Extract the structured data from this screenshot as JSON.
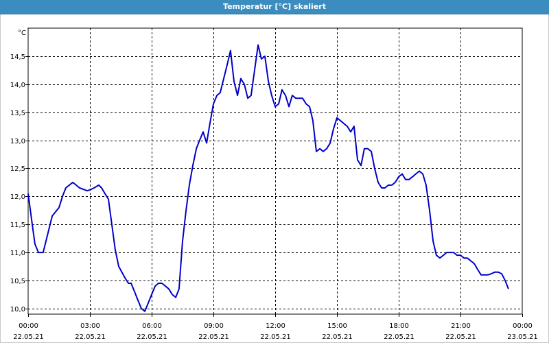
{
  "window": {
    "title": "Temperatur [°C] skaliert"
  },
  "colors": {
    "titlebar": "#3c8dbf",
    "line": "#0000c8",
    "grid": "#000000"
  },
  "chart_data": {
    "type": "line",
    "title": "Temperatur [°C] skaliert",
    "ylabel": "°C",
    "xlabel": "",
    "ylim": [
      9.9,
      15.0
    ],
    "xlim": [
      0,
      24
    ],
    "grid": true,
    "yticks": [
      10.0,
      10.5,
      11.0,
      11.5,
      12.0,
      12.5,
      13.0,
      13.5,
      14.0,
      14.5
    ],
    "ytick_labels": [
      "10,0",
      "10,5",
      "11,0",
      "11,5",
      "12,0",
      "12,5",
      "13,0",
      "13,5",
      "14,0",
      "14,5"
    ],
    "xticks": [
      0,
      3,
      6,
      9,
      12,
      15,
      18,
      21,
      24
    ],
    "xtick_labels": [
      [
        "00:00",
        "22.05.21"
      ],
      [
        "03:00",
        "22.05.21"
      ],
      [
        "06:00",
        "22.05.21"
      ],
      [
        "09:00",
        "22.05.21"
      ],
      [
        "12:00",
        "22.05.21"
      ],
      [
        "15:00",
        "22.05.21"
      ],
      [
        "18:00",
        "22.05.21"
      ],
      [
        "21:00",
        "22.05.21"
      ],
      [
        "00:00",
        "23.05.21"
      ]
    ],
    "series": [
      {
        "x": [
          0.0,
          0.2,
          0.33,
          0.5,
          0.73,
          1.0,
          1.17,
          1.5,
          1.67,
          1.83,
          2.0,
          2.17,
          2.5,
          2.87,
          3.03,
          3.2,
          3.43,
          3.57,
          3.73,
          3.9,
          4.23,
          4.4,
          4.7,
          4.87,
          5.0,
          5.17,
          5.33,
          5.5,
          5.67,
          6.0,
          6.17,
          6.33,
          6.5,
          6.83,
          7.0,
          7.17,
          7.33,
          7.5,
          7.67,
          7.83,
          8.0,
          8.17,
          8.33,
          8.5,
          8.67,
          8.83,
          9.0,
          9.17,
          9.33,
          9.5,
          9.67,
          9.83,
          10.0,
          10.17,
          10.33,
          10.5,
          10.67,
          10.83,
          11.0,
          11.17,
          11.33,
          11.5,
          11.67,
          11.83,
          12.0,
          12.17,
          12.33,
          12.5,
          12.67,
          12.83,
          13.0,
          13.33,
          13.5,
          13.67,
          13.83,
          14.0,
          14.17,
          14.33,
          14.5,
          14.67,
          14.83,
          15.0,
          15.17,
          15.33,
          15.5,
          15.67,
          15.83,
          16.0,
          16.17,
          16.33,
          16.5,
          16.67,
          16.83,
          17.0,
          17.17,
          17.33,
          17.5,
          17.67,
          17.83,
          18.0,
          18.17,
          18.33,
          18.5,
          18.67,
          18.83,
          19.0,
          19.17,
          19.33,
          19.5,
          19.67,
          19.83,
          20.0,
          20.17,
          20.33,
          20.5,
          20.67,
          20.83,
          21.0,
          21.17,
          21.33,
          21.5,
          21.67,
          21.83,
          22.0,
          22.17,
          22.33,
          22.5,
          22.67,
          22.83,
          23.0,
          23.17,
          23.33
        ],
        "y": [
          12.05,
          11.5,
          11.15,
          11.0,
          11.0,
          11.4,
          11.65,
          11.8,
          12.0,
          12.15,
          12.2,
          12.25,
          12.15,
          12.1,
          12.12,
          12.15,
          12.2,
          12.15,
          12.05,
          11.95,
          11.05,
          10.75,
          10.55,
          10.45,
          10.45,
          10.3,
          10.15,
          10.0,
          9.95,
          10.25,
          10.4,
          10.45,
          10.45,
          10.35,
          10.25,
          10.2,
          10.35,
          11.2,
          11.75,
          12.2,
          12.55,
          12.85,
          13.0,
          13.15,
          12.95,
          13.3,
          13.65,
          13.8,
          13.85,
          14.1,
          14.35,
          14.6,
          14.05,
          13.8,
          14.1,
          14.0,
          13.75,
          13.8,
          14.25,
          14.7,
          14.45,
          14.5,
          14.05,
          13.8,
          13.6,
          13.65,
          13.9,
          13.8,
          13.6,
          13.8,
          13.75,
          13.75,
          13.65,
          13.6,
          13.35,
          12.8,
          12.85,
          12.8,
          12.85,
          12.95,
          13.2,
          13.4,
          13.35,
          13.3,
          13.25,
          13.15,
          13.25,
          12.65,
          12.55,
          12.85,
          12.85,
          12.8,
          12.5,
          12.25,
          12.15,
          12.15,
          12.2,
          12.2,
          12.25,
          12.35,
          12.4,
          12.3,
          12.3,
          12.35,
          12.4,
          12.45,
          12.4,
          12.2,
          11.75,
          11.2,
          10.95,
          10.9,
          10.95,
          11.0,
          11.0,
          11.0,
          10.95,
          10.95,
          10.9,
          10.9,
          10.85,
          10.8,
          10.7,
          10.6,
          10.6,
          10.6,
          10.62,
          10.65,
          10.65,
          10.62,
          10.5,
          10.35
        ]
      }
    ]
  }
}
